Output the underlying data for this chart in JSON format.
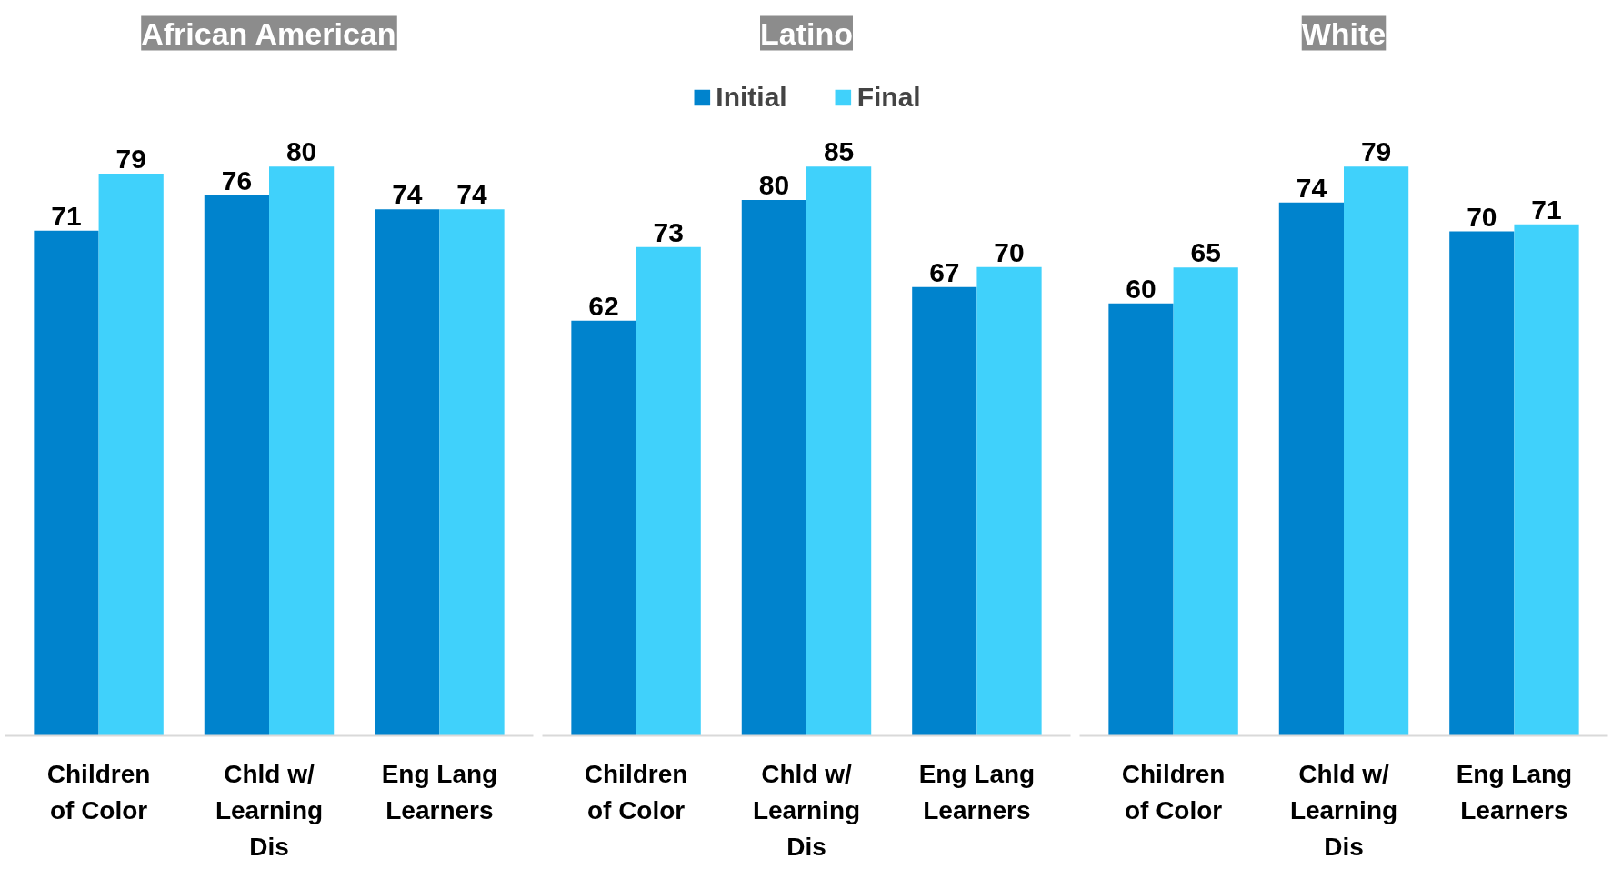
{
  "chart_data": [
    {
      "type": "bar",
      "title": "African American",
      "categories": [
        "Children\nof Color",
        "Chld w/\nLearning\nDis",
        "Eng Lang\nLearners"
      ],
      "series": [
        {
          "color": "#0083cd",
          "values": [
            71,
            76,
            74
          ]
        },
        {
          "color": "#40d1fb",
          "values": [
            79,
            80,
            74
          ]
        }
      ],
      "data_labels": true,
      "tick_labels": "x"
    },
    {
      "type": "bar",
      "title": "Latino",
      "categories": [
        "Children\nof Color",
        "Chld w/\nLearning\nDis",
        "Eng Lang\nLearners"
      ],
      "series": [
        {
          "name": "Initial",
          "color": "#0083cd",
          "values": [
            62,
            80,
            67
          ]
        },
        {
          "name": "Final",
          "color": "#40d1fb",
          "values": [
            73,
            85,
            70
          ]
        }
      ],
      "data_labels": true,
      "legend": "top",
      "tick_labels": "x"
    },
    {
      "type": "bar",
      "title": "White",
      "categories": [
        "Children\nof Color",
        "Chld w/\nLearning\nDis",
        "Eng Lang\nLearners"
      ],
      "series": [
        {
          "color": "#0083cd",
          "values": [
            60,
            74,
            70
          ]
        },
        {
          "color": "#40d1fb",
          "values": [
            65,
            79,
            71
          ]
        }
      ],
      "data_labels": true,
      "tick_labels": "x"
    }
  ]
}
